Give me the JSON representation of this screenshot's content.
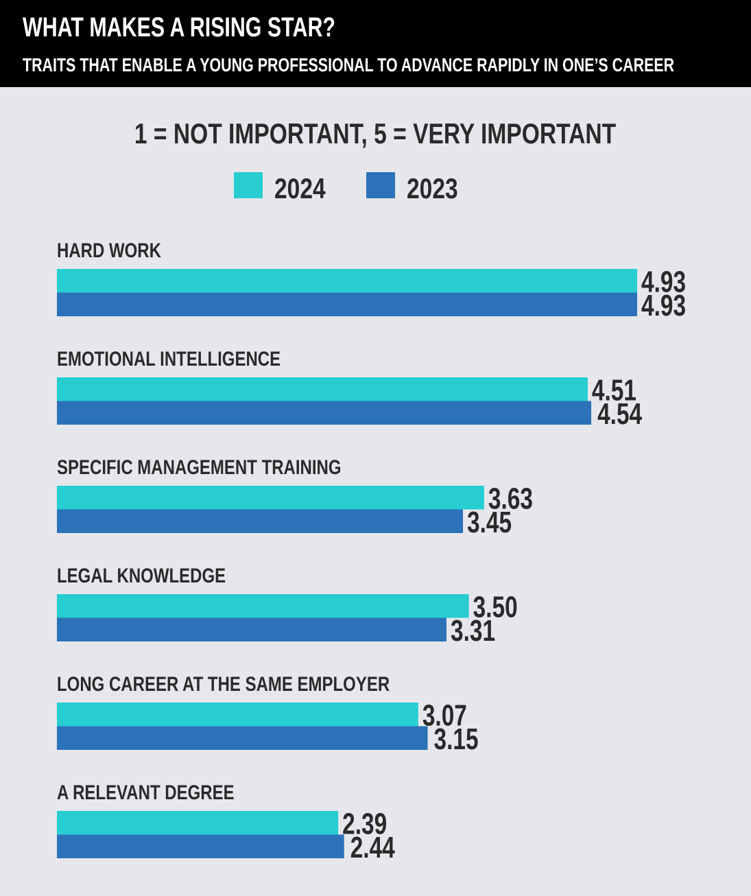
{
  "header": {
    "title": "WHAT MAKES A RISING STAR?",
    "subtitle": "TRAITS THAT ENABLE A YOUNG PROFESSIONAL TO ADVANCE RAPIDLY IN ONE’S CAREER"
  },
  "chart_data": {
    "type": "bar",
    "orientation": "horizontal",
    "title": "WHAT MAKES A RISING STAR?",
    "subtitle": "1 = NOT IMPORTANT, 5 = VERY IMPORTANT",
    "categories": [
      "HARD WORK",
      "EMOTIONAL INTELLIGENCE",
      "SPECIFIC MANAGEMENT TRAINING",
      "LEGAL KNOWLEDGE",
      "LONG CAREER AT THE SAME EMPLOYER",
      "A RELEVANT DEGREE"
    ],
    "series": [
      {
        "name": "2024",
        "color": "#27cdd1",
        "values": [
          4.93,
          4.51,
          3.63,
          3.5,
          3.07,
          2.39
        ],
        "labels": [
          "4.93",
          "4.51",
          "3.63",
          "3.50",
          "3.07",
          "2.39"
        ]
      },
      {
        "name": "2023",
        "color": "#2b72b9",
        "values": [
          4.93,
          4.54,
          3.45,
          3.31,
          3.15,
          2.44
        ],
        "labels": [
          "4.93",
          "4.54",
          "3.45",
          "3.31",
          "3.15",
          "2.44"
        ]
      }
    ],
    "xlim": [
      0,
      5
    ],
    "legend": "top-center",
    "grid": false
  }
}
